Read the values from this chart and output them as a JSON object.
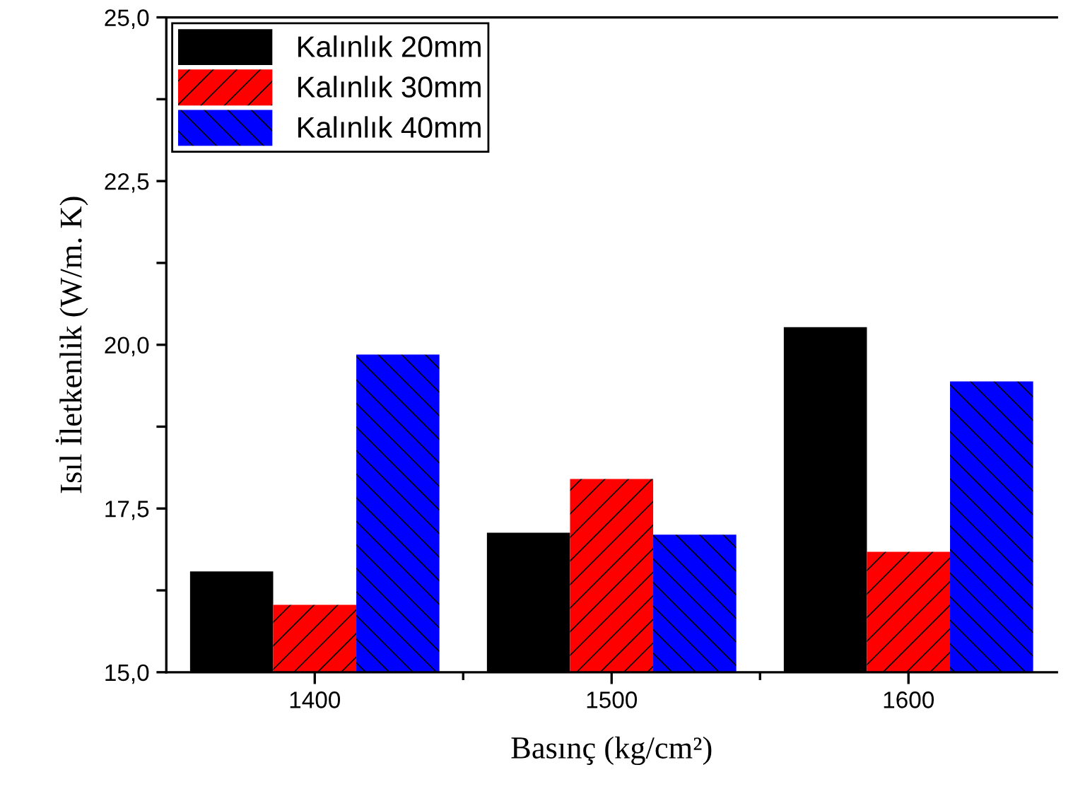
{
  "chart_data": {
    "type": "bar",
    "xlabel": "Basınç (kg/cm²)",
    "ylabel": "Isıl İletkenlik (W/m. K)",
    "categories": [
      "1400",
      "1500",
      "1600"
    ],
    "series": [
      {
        "name": "Kalınlık 20mm",
        "color": "#000000",
        "values": [
          16.54,
          17.13,
          20.27
        ]
      },
      {
        "name": "Kalınlık 30mm",
        "color": "#ff0000",
        "values": [
          16.03,
          17.95,
          16.84
        ]
      },
      {
        "name": "Kalınlık 40mm",
        "color": "#0000ff",
        "values": [
          19.85,
          17.1,
          19.44
        ]
      }
    ],
    "ylim": [
      15,
      25
    ],
    "yticks": [
      {
        "value": 15,
        "label": "15,0"
      },
      {
        "value": 16.25,
        "label": null
      },
      {
        "value": 17.5,
        "label": "17,5"
      },
      {
        "value": 18.75,
        "label": null
      },
      {
        "value": 20,
        "label": "20,0"
      },
      {
        "value": 21.25,
        "label": null
      },
      {
        "value": 22.5,
        "label": "22,5"
      },
      {
        "value": 23.75,
        "label": null
      },
      {
        "value": 25,
        "label": "25,0"
      }
    ],
    "legend": "top left",
    "grid": false
  }
}
